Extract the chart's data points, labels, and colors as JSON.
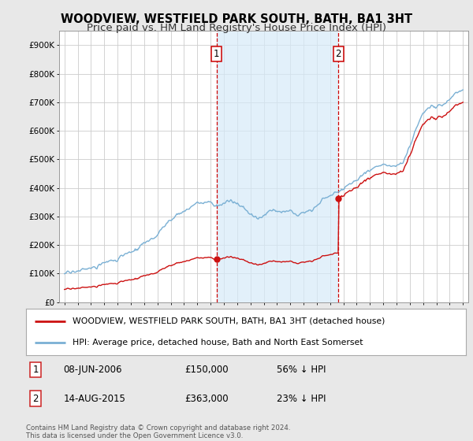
{
  "title": "WOODVIEW, WESTFIELD PARK SOUTH, BATH, BA1 3HT",
  "subtitle": "Price paid vs. HM Land Registry's House Price Index (HPI)",
  "title_fontsize": 10.5,
  "subtitle_fontsize": 9.5,
  "ylim": [
    0,
    950000
  ],
  "yticks": [
    0,
    100000,
    200000,
    300000,
    400000,
    500000,
    600000,
    700000,
    800000,
    900000
  ],
  "ytick_labels": [
    "£0",
    "£100K",
    "£200K",
    "£300K",
    "£400K",
    "£500K",
    "£600K",
    "£700K",
    "£800K",
    "£900K"
  ],
  "hpi_color": "#7ab0d4",
  "hpi_fill_color": "#d6eaf8",
  "price_color": "#cc1111",
  "vline_color": "#cc0000",
  "marker_color": "#cc1111",
  "background_color": "#e8e8e8",
  "plot_bg_color": "#ffffff",
  "legend_label_red": "WOODVIEW, WESTFIELD PARK SOUTH, BATH, BA1 3HT (detached house)",
  "legend_label_blue": "HPI: Average price, detached house, Bath and North East Somerset",
  "annotation1_label": "1",
  "annotation1_date": "08-JUN-2006",
  "annotation1_price": "£150,000",
  "annotation1_pct": "56% ↓ HPI",
  "annotation2_label": "2",
  "annotation2_date": "14-AUG-2015",
  "annotation2_price": "£363,000",
  "annotation2_pct": "23% ↓ HPI",
  "footnote": "Contains HM Land Registry data © Crown copyright and database right 2024.\nThis data is licensed under the Open Government Licence v3.0.",
  "vline1_x": 2006.44,
  "vline2_x": 2015.62,
  "sale1_x": 2006.44,
  "sale1_y": 150000,
  "sale2_x": 2015.62,
  "sale2_y": 363000,
  "xlim_left": 1994.6,
  "xlim_right": 2025.4,
  "xtick_start": 1995,
  "xtick_end": 2025
}
